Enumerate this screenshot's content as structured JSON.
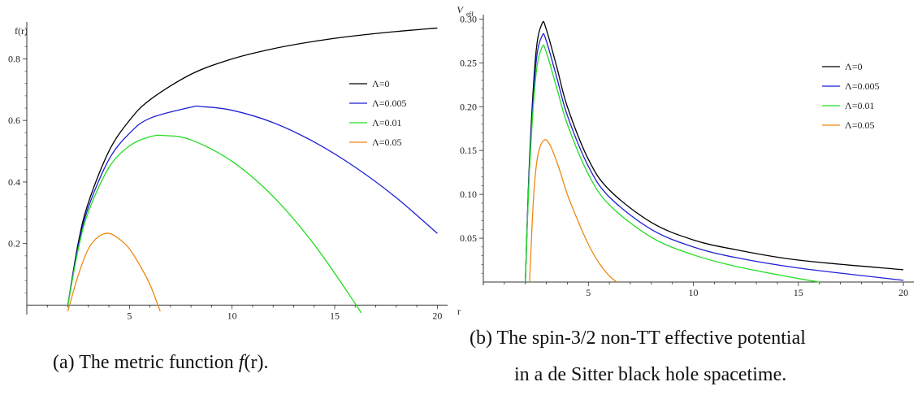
{
  "chart_data": [
    {
      "type": "line",
      "panel": "a",
      "ylabel": "f(r)",
      "xlabel": "r",
      "xlim": [
        0,
        20.5
      ],
      "ylim": [
        -0.02,
        0.92
      ],
      "xticks": [
        5,
        10,
        15,
        20
      ],
      "xtick_labels": [
        "5",
        "10",
        "15",
        "20"
      ],
      "yticks": [
        0.2,
        0.4,
        0.6,
        0.8
      ],
      "ytick_labels": [
        "0.2",
        "0.4",
        "0.6",
        "0.8"
      ],
      "grid": false,
      "legend": "right",
      "series": [
        {
          "name": "Λ=0",
          "color": "#000000",
          "x": [
            2.0,
            2.5,
            3,
            4,
            5,
            6,
            8,
            10,
            12,
            14,
            16,
            18,
            20
          ],
          "y": [
            0.0,
            0.2,
            0.333,
            0.5,
            0.6,
            0.667,
            0.75,
            0.8,
            0.833,
            0.857,
            0.875,
            0.889,
            0.9
          ]
        },
        {
          "name": "Λ=0.005",
          "color": "#1f1fd6",
          "x": [
            2.0,
            2.5,
            3,
            4,
            5,
            6,
            8,
            8.5,
            10,
            12,
            14,
            16,
            18,
            20
          ],
          "y": [
            0.0,
            0.19,
            0.318,
            0.473,
            0.558,
            0.607,
            0.643,
            0.645,
            0.633,
            0.593,
            0.53,
            0.448,
            0.349,
            0.233
          ]
        },
        {
          "name": "Λ=0.01",
          "color": "#22dd22",
          "x": [
            2.0,
            2.5,
            3,
            4,
            5,
            6,
            6.7,
            8,
            10,
            12,
            14,
            16,
            16.4
          ],
          "y": [
            0.0,
            0.18,
            0.303,
            0.447,
            0.517,
            0.547,
            0.551,
            0.537,
            0.467,
            0.353,
            0.197,
            0.005,
            -0.04
          ]
        },
        {
          "name": "Λ=0.05",
          "color": "#ee8811",
          "x": [
            2.0,
            2.5,
            3,
            3.5,
            4,
            4.5,
            5,
            5.5,
            6,
            6.5
          ],
          "y": [
            -0.02,
            0.096,
            0.183,
            0.223,
            0.233,
            0.215,
            0.183,
            0.13,
            0.067,
            -0.02
          ]
        }
      ]
    },
    {
      "type": "line",
      "panel": "b",
      "ylabel": "V",
      "ylabel_sub": "eff",
      "xlabel": "",
      "xlim": [
        0,
        20.5
      ],
      "ylim": [
        0,
        0.305
      ],
      "xticks": [
        5,
        10,
        15,
        20
      ],
      "xtick_labels": [
        "5",
        "10",
        "15",
        "20"
      ],
      "yticks": [
        0.05,
        0.1,
        0.15,
        0.2,
        0.25,
        0.3
      ],
      "ytick_labels": [
        "0.05",
        "0.10",
        "0.15",
        "0.20",
        "0.25",
        "0.30"
      ],
      "grid": false,
      "legend": "right",
      "series": [
        {
          "name": "Λ=0",
          "color": "#000000",
          "x": [
            2.0,
            2.2,
            2.5,
            2.8,
            3.0,
            3.5,
            4,
            5,
            6,
            8,
            10,
            12,
            15,
            20
          ],
          "y": [
            0.0,
            0.14,
            0.26,
            0.295,
            0.288,
            0.245,
            0.2,
            0.14,
            0.105,
            0.068,
            0.048,
            0.037,
            0.025,
            0.014
          ]
        },
        {
          "name": "Λ=0.005",
          "color": "#1f1fd6",
          "x": [
            2.0,
            2.2,
            2.5,
            2.8,
            3.0,
            3.5,
            4,
            5,
            6,
            8,
            10,
            12,
            15,
            20
          ],
          "y": [
            0.0,
            0.134,
            0.248,
            0.281,
            0.275,
            0.233,
            0.19,
            0.132,
            0.097,
            0.06,
            0.04,
            0.028,
            0.016,
            0.002
          ]
        },
        {
          "name": "Λ=0.01",
          "color": "#22dd22",
          "x": [
            2.0,
            2.2,
            2.5,
            2.8,
            3.0,
            3.5,
            4,
            5,
            6,
            8,
            10,
            12,
            15,
            16
          ],
          "y": [
            0.0,
            0.128,
            0.235,
            0.268,
            0.262,
            0.221,
            0.18,
            0.123,
            0.088,
            0.051,
            0.031,
            0.018,
            0.004,
            0.0
          ]
        },
        {
          "name": "Λ=0.05",
          "color": "#ee8811",
          "x": [
            2.2,
            2.4,
            2.6,
            2.9,
            3.2,
            3.6,
            4,
            4.5,
            5,
            5.5,
            6,
            6.35
          ],
          "y": [
            0.0,
            0.1,
            0.145,
            0.162,
            0.155,
            0.13,
            0.1,
            0.07,
            0.043,
            0.022,
            0.007,
            0.0
          ]
        }
      ]
    }
  ],
  "captions": {
    "a_prefix": "(a) The metric function ",
    "a_math": "f",
    "a_suffix": "(r).",
    "b_line1": "(b) The spin-3/2 non-TT effective potential",
    "b_line2": "in a de Sitter black hole spacetime."
  }
}
